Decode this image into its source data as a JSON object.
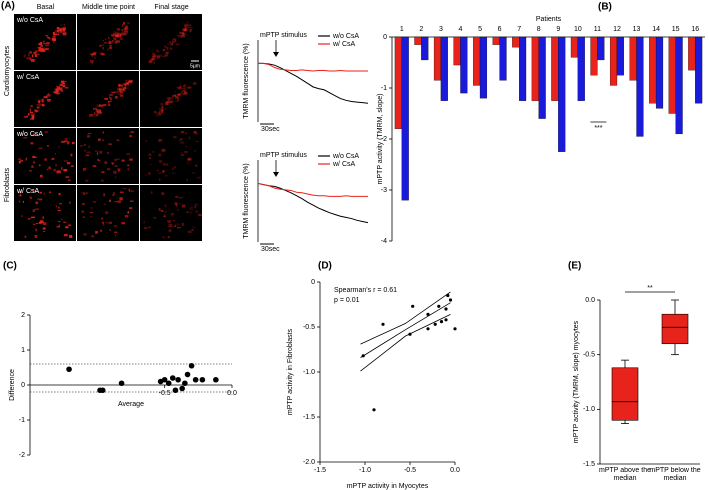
{
  "panel_a_images": {
    "label": "(A)",
    "columns": [
      "Basal",
      "Middle time point",
      "Final stage"
    ],
    "groups": [
      {
        "name": "Cardiomyocytes",
        "rows": [
          "w/o CsA",
          "w/ CsA"
        ]
      },
      {
        "name": "Fibroblasts",
        "rows": [
          "w/o CsA",
          "w/ CsA"
        ]
      }
    ],
    "scale_bar": "5μm"
  },
  "chart_data": [
    {
      "type": "line",
      "ylabel": "TMRM fluorescence (%)",
      "annotation": "mPTP stimulus",
      "scale_bar": "30sec",
      "legend": "upper right",
      "x": [
        0,
        10,
        20,
        30,
        40,
        50,
        60,
        70,
        80,
        90,
        100,
        110,
        120,
        130,
        140,
        150,
        160,
        170,
        180,
        190,
        200
      ],
      "xlim": [
        0,
        200
      ],
      "ylim": [
        0,
        140
      ],
      "series": [
        {
          "name": "w/o CsA",
          "color": "#000000",
          "values": [
            100,
            100,
            99,
            97,
            93,
            88,
            83,
            78,
            72,
            66,
            60,
            57,
            55,
            50,
            45,
            40,
            37,
            35,
            34,
            33,
            32
          ]
        },
        {
          "name": "w/ CsA",
          "color": "#e8231c",
          "values": [
            100,
            100,
            98,
            93,
            90,
            89,
            88,
            88,
            89,
            88,
            87,
            88,
            88,
            87,
            87,
            88,
            87,
            87,
            87,
            87,
            87
          ]
        }
      ]
    },
    {
      "type": "line",
      "ylabel": "TMRM fluorescence (%)",
      "annotation": "mPTP stimulus",
      "scale_bar": "30sec",
      "legend": "upper right",
      "x": [
        0,
        10,
        20,
        30,
        40,
        50,
        60,
        70,
        80,
        90,
        100,
        110,
        120,
        130,
        140,
        150,
        160,
        170,
        180,
        190,
        200
      ],
      "xlim": [
        0,
        200
      ],
      "ylim": [
        0,
        140
      ],
      "series": [
        {
          "name": "w/o CsA",
          "color": "#000000",
          "values": [
            100,
            98,
            96,
            95,
            92,
            88,
            84,
            79,
            74,
            68,
            63,
            58,
            54,
            50,
            47,
            44,
            42,
            40,
            37,
            35,
            33
          ]
        },
        {
          "name": "w/ CsA",
          "color": "#e8231c",
          "values": [
            100,
            98,
            96,
            92,
            90,
            89,
            88,
            85,
            84,
            82,
            80,
            79,
            79,
            78,
            78,
            78,
            79,
            78,
            78,
            78,
            78
          ]
        }
      ]
    },
    {
      "type": "bar",
      "panel": "(B)",
      "title": "Patients",
      "ylabel": "mPTP activity (TMRM, slope)",
      "annotation": "***",
      "categories": [
        "1",
        "2",
        "3",
        "4",
        "5",
        "6",
        "7",
        "8",
        "9",
        "10",
        "11",
        "12",
        "13",
        "14",
        "15",
        "16"
      ],
      "ylim": [
        -4,
        0
      ],
      "yticks": [
        0,
        -1,
        -2,
        -3,
        -4
      ],
      "series": [
        {
          "color": "#e8231c",
          "values": [
            -1.8,
            -0.15,
            -0.85,
            -0.55,
            -0.95,
            -0.15,
            -0.2,
            -1.25,
            -1.25,
            -0.4,
            -0.75,
            -0.95,
            -0.85,
            -1.3,
            -1.5,
            -0.65
          ]
        },
        {
          "color": "#1a1adb",
          "values": [
            -3.2,
            -0.45,
            -1.25,
            -1.1,
            -1.2,
            -0.85,
            -1.25,
            -1.6,
            -2.25,
            -1.25,
            -0.45,
            -0.75,
            -1.95,
            -1.4,
            -1.9,
            -1.3
          ]
        }
      ]
    },
    {
      "type": "scatter",
      "panel": "(C)",
      "xlabel": "Average",
      "ylabel": "Difference",
      "xlim": [
        -1.5,
        0
      ],
      "ylim": [
        -2,
        2
      ],
      "xticks": [
        -0.5,
        {
          "value": 0,
          "label": "0.0"
        }
      ],
      "yticks": [
        -2,
        -1,
        0,
        1,
        2
      ],
      "hlines": [
        0.6,
        -0.2
      ],
      "x": [
        -1.21,
        -0.98,
        -0.96,
        -0.82,
        -0.53,
        -0.5,
        -0.47,
        -0.44,
        -0.42,
        -0.4,
        -0.37,
        -0.35,
        -0.33,
        -0.3,
        -0.27,
        -0.22,
        -0.12
      ],
      "values": [
        0.45,
        -0.15,
        -0.15,
        0.05,
        0.1,
        0.15,
        0.05,
        0.2,
        -0.15,
        0.15,
        -0.1,
        0.05,
        0.3,
        0.55,
        0.15,
        0.15,
        0.15
      ]
    },
    {
      "type": "scatter",
      "panel": "(D)",
      "xlabel": "mPTP activity in Myocytes",
      "ylabel": "mPTP activity in Fibroblasts",
      "annotations": [
        "Spearman's r = 0.61",
        "p = 0.01"
      ],
      "xlim": [
        -1.5,
        0
      ],
      "ylim": [
        -2,
        0
      ],
      "xticks": [
        -1.5,
        {
          "value": -1,
          "label": "-1.0"
        },
        -0.5,
        {
          "value": 0,
          "label": "0.0"
        }
      ],
      "yticks": [
        0,
        -0.5,
        {
          "value": -1,
          "label": "-1.0"
        },
        -1.5,
        {
          "value": -2,
          "label": "-2.0"
        }
      ],
      "x": [
        -1.02,
        -0.9,
        -0.8,
        -0.47,
        -0.5,
        -0.3,
        -0.3,
        -0.22,
        -0.18,
        -0.15,
        -0.1,
        -0.08,
        -0.05,
        -0.1,
        0
      ],
      "values": [
        -0.82,
        -1.42,
        -0.47,
        -0.27,
        -0.58,
        -0.36,
        -0.52,
        -0.47,
        -0.27,
        -0.44,
        -0.42,
        -0.15,
        -0.2,
        -0.3,
        -0.52
      ],
      "fit": {
        "x": [
          -1.05,
          -0.55,
          -0.05
        ],
        "y": [
          -0.84,
          -0.53,
          -0.23
        ],
        "lower": [
          -0.99,
          -0.6,
          -0.36
        ],
        "upper": [
          -0.69,
          -0.46,
          -0.11
        ]
      }
    },
    {
      "type": "box",
      "panel": "(E)",
      "ylabel": "mPTP activity (TMRM, slope) myocytes",
      "annotation": "**",
      "color": "#e8231c",
      "categories": [
        "mPTP above the median",
        "mPTP below the median"
      ],
      "ylim": [
        -1.5,
        0
      ],
      "yticks": [
        {
          "value": 0,
          "label": "0.0"
        },
        -0.5,
        {
          "value": -1,
          "label": "-1.0"
        },
        -1.5
      ],
      "boxes": [
        {
          "min": -1.13,
          "q1": -1.1,
          "median": -0.93,
          "q3": -0.62,
          "max": -0.55
        },
        {
          "min": -0.5,
          "q1": -0.4,
          "median": -0.25,
          "q3": -0.13,
          "max": 0
        }
      ]
    }
  ]
}
